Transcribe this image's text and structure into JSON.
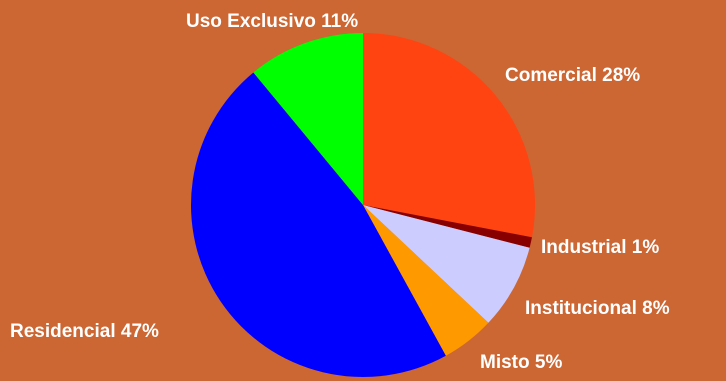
{
  "background_color": "#CC6633",
  "chart_data": {
    "type": "pie",
    "title": "",
    "slices": [
      {
        "name": "Comercial",
        "value": 28,
        "label": "Comercial 28%",
        "color": "#FF4411"
      },
      {
        "name": "Industrial",
        "value": 1,
        "label": "Industrial 1%",
        "color": "#880000"
      },
      {
        "name": "Institucional",
        "value": 8,
        "label": "Institucional 8%",
        "color": "#CCCCFF"
      },
      {
        "name": "Misto",
        "value": 5,
        "label": "Misto 5%",
        "color": "#FF9900"
      },
      {
        "name": "Residencial",
        "value": 47,
        "label": "Residencial 47%",
        "color": "#0000FF"
      },
      {
        "name": "Uso Exclusivo",
        "value": 11,
        "label": "Uso Exclusivo 11%",
        "color": "#00FF00"
      }
    ],
    "legend": "none",
    "labels": "outside"
  }
}
